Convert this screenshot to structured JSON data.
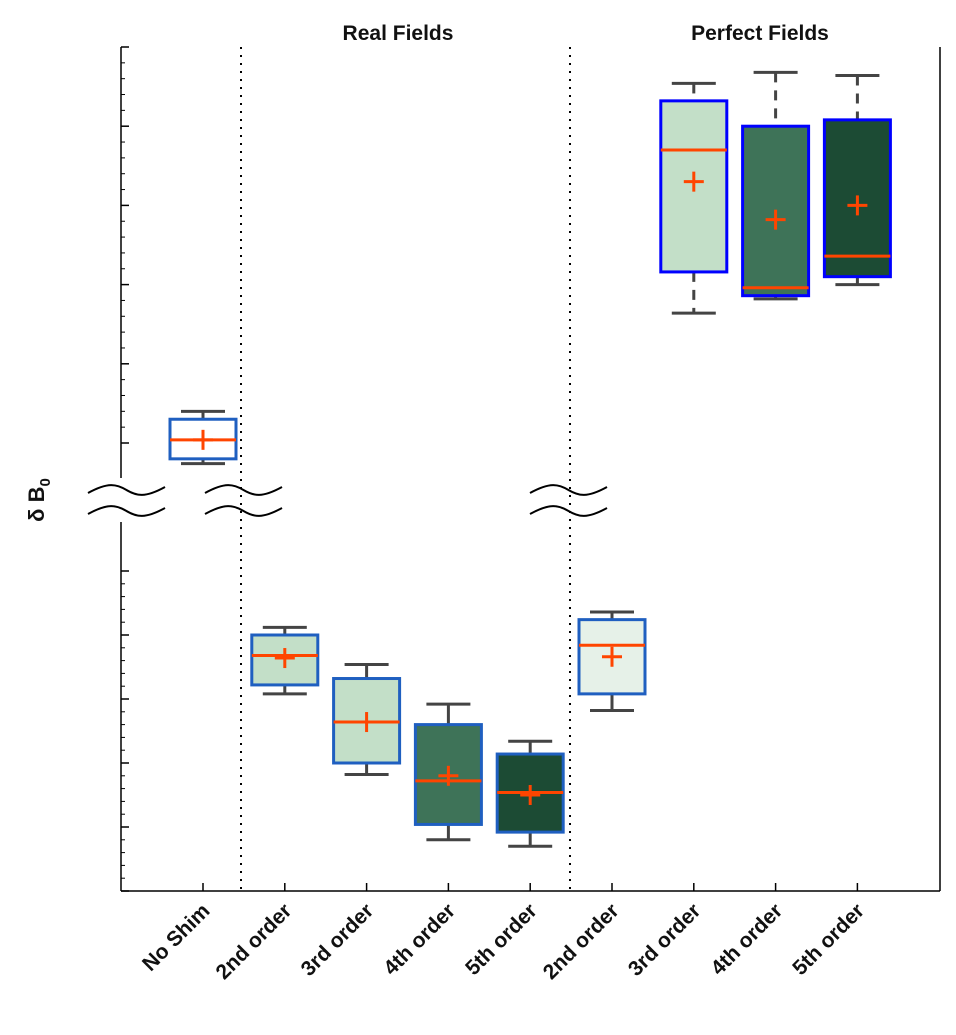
{
  "chart_data": {
    "type": "box",
    "ylabel": "δ B",
    "ylabel_subscript": "0",
    "group_titles": [
      "Real Fields",
      "Perfect Fields"
    ],
    "categories": [
      "No Shim",
      "2nd order",
      "3rd order",
      "4th order",
      "5th order",
      "2nd order",
      "3rd order",
      "4th order",
      "5th order"
    ],
    "groups": [
      "None",
      "Real Fields",
      "Real Fields",
      "Real Fields",
      "Real Fields",
      "Perfect Fields",
      "Perfect Fields",
      "Perfect Fields",
      "Perfect Fields"
    ],
    "broken_axis": {
      "lower": {
        "ylim": [
          30,
          57
        ],
        "ticks": [
          30,
          35,
          40,
          45,
          50,
          55
        ]
      },
      "upper": {
        "ylim": [
          120,
          400
        ],
        "ticks": [
          150,
          200,
          250,
          300,
          350,
          400
        ]
      }
    },
    "boxes": [
      {
        "whisker_low": 137,
        "q1": 140,
        "median": 152,
        "q3": 165,
        "whisker_high": 170,
        "mean": 152,
        "fill": "#ffffff",
        "edge": "#1f5fc0"
      },
      {
        "whisker_low": 45.4,
        "q1": 46.1,
        "median": 48.4,
        "q3": 50.0,
        "whisker_high": 50.6,
        "mean": 48.2,
        "fill": "#c3dfc8",
        "edge": "#1f5fc0"
      },
      {
        "whisker_low": 39.1,
        "q1": 40.0,
        "median": 43.2,
        "q3": 46.6,
        "whisker_high": 47.7,
        "mean": 43.2,
        "fill": "#c3dfc8",
        "edge": "#1f5fc0"
      },
      {
        "whisker_low": 34.0,
        "q1": 35.2,
        "median": 38.6,
        "q3": 43.0,
        "whisker_high": 44.6,
        "mean": 39.0,
        "fill": "#3e7358",
        "edge": "#1f5fc0"
      },
      {
        "whisker_low": 33.5,
        "q1": 34.6,
        "median": 37.7,
        "q3": 40.7,
        "whisker_high": 41.7,
        "mean": 37.5,
        "fill": "#1c4b34",
        "edge": "#1f5fc0"
      },
      {
        "whisker_low": 44.1,
        "q1": 45.4,
        "median": 49.2,
        "q3": 51.2,
        "whisker_high": 51.8,
        "mean": 48.3,
        "fill": "#e6f1e8",
        "edge": "#1f5fc0"
      },
      {
        "whisker_low": 232,
        "q1": 258,
        "median": 335,
        "q3": 366,
        "whisker_high": 377,
        "mean": 315,
        "fill": "#c3dfc8",
        "edge": "#0000ff"
      },
      {
        "whisker_low": 241,
        "q1": 243,
        "median": 248,
        "q3": 350,
        "whisker_high": 384,
        "mean": 291,
        "fill": "#3e7358",
        "edge": "#0000ff"
      },
      {
        "whisker_low": 250,
        "q1": 255,
        "median": 268,
        "q3": 354,
        "whisker_high": 382,
        "mean": 300,
        "fill": "#1c4b34",
        "edge": "#0000ff"
      }
    ],
    "median_color": "#ff4500",
    "mean_color": "#ff4500",
    "whisker_color": "#444444"
  }
}
